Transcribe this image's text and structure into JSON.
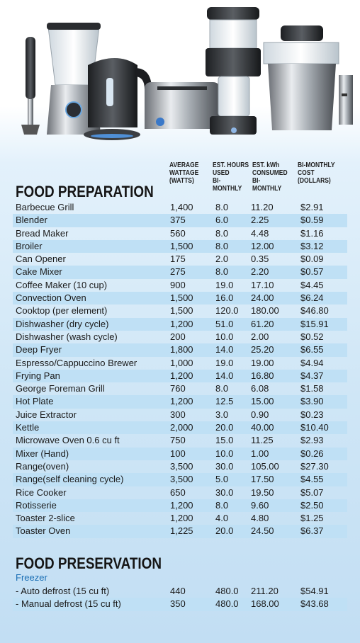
{
  "headers": {
    "wattage": [
      "AVERAGE",
      "WATTAGE",
      "(WATTS)"
    ],
    "hours": [
      "EST. HOURS",
      "USED",
      "BI-",
      "MONTHLY"
    ],
    "kwh": [
      "EST. kWh",
      "CONSUMED",
      "BI-",
      "MONTHLY"
    ],
    "cost": [
      "BI-MONTHLY",
      "COST",
      "(DOLLARS)"
    ]
  },
  "food_preparation": {
    "title": "FOOD PREPARATION",
    "rows": [
      {
        "name": "Barbecue Grill",
        "watts": "1,400",
        "hours": "8.0",
        "kwh": "11.20",
        "cost": "$2.91"
      },
      {
        "name": "Blender",
        "watts": "375",
        "hours": "6.0",
        "kwh": "2.25",
        "cost": "$0.59"
      },
      {
        "name": "Bread Maker",
        "watts": "560",
        "hours": "8.0",
        "kwh": "4.48",
        "cost": "$1.16"
      },
      {
        "name": "Broiler",
        "watts": "1,500",
        "hours": "8.0",
        "kwh": "12.00",
        "cost": "$3.12"
      },
      {
        "name": "Can Opener",
        "watts": "175",
        "hours": "2.0",
        "kwh": "0.35",
        "cost": "$0.09"
      },
      {
        "name": "Cake Mixer",
        "watts": "275",
        "hours": "8.0",
        "kwh": "2.20",
        "cost": "$0.57"
      },
      {
        "name": "Coffee Maker (10 cup)",
        "watts": "900",
        "hours": "19.0",
        "kwh": "17.10",
        "cost": "$4.45"
      },
      {
        "name": "Convection Oven",
        "watts": "1,500",
        "hours": "16.0",
        "kwh": "24.00",
        "cost": "$6.24"
      },
      {
        "name": "Cooktop (per element)",
        "watts": "1,500",
        "hours": "120.0",
        "kwh": "180.00",
        "cost": "$46.80"
      },
      {
        "name": "Dishwasher (dry cycle)",
        "watts": "1,200",
        "hours": "51.0",
        "kwh": "61.20",
        "cost": "$15.91"
      },
      {
        "name": "Dishwasher (wash cycle)",
        "watts": "200",
        "hours": "10.0",
        "kwh": "2.00",
        "cost": "$0.52"
      },
      {
        "name": "Deep Fryer",
        "watts": "1,800",
        "hours": "14.0",
        "kwh": "25.20",
        "cost": "$6.55"
      },
      {
        "name": "Espresso/Cappuccino Brewer",
        "watts": "1,000",
        "hours": "19.0",
        "kwh": "19.00",
        "cost": "$4.94"
      },
      {
        "name": "Frying Pan",
        "watts": "1,200",
        "hours": "14.0",
        "kwh": "16.80",
        "cost": "$4.37"
      },
      {
        "name": "George Foreman Grill",
        "watts": "760",
        "hours": "8.0",
        "kwh": "6.08",
        "cost": "$1.58"
      },
      {
        "name": "Hot Plate",
        "watts": "1,200",
        "hours": "12.5",
        "kwh": "15.00",
        "cost": "$3.90"
      },
      {
        "name": "Juice Extractor",
        "watts": "300",
        "hours": "3.0",
        "kwh": "0.90",
        "cost": "$0.23"
      },
      {
        "name": "Kettle",
        "watts": "2,000",
        "hours": "20.0",
        "kwh": "40.00",
        "cost": "$10.40"
      },
      {
        "name": "Microwave Oven 0.6 cu ft",
        "watts": "750",
        "hours": "15.0",
        "kwh": "11.25",
        "cost": "$2.93"
      },
      {
        "name": "Mixer (Hand)",
        "watts": "100",
        "hours": "10.0",
        "kwh": "1.00",
        "cost": "$0.26"
      },
      {
        "name": "Range(oven)",
        "watts": "3,500",
        "hours": "30.0",
        "kwh": "105.00",
        "cost": "$27.30"
      },
      {
        "name": "Range(self cleaning cycle)",
        "watts": "3,500",
        "hours": "5.0",
        "kwh": "17.50",
        "cost": "$4.55"
      },
      {
        "name": "Rice Cooker",
        "watts": "650",
        "hours": "30.0",
        "kwh": "19.50",
        "cost": "$5.07"
      },
      {
        "name": "Rotisserie",
        "watts": "1,200",
        "hours": "8.0",
        "kwh": "9.60",
        "cost": "$2.50"
      },
      {
        "name": "Toaster 2-slice",
        "watts": "1,200",
        "hours": "4.0",
        "kwh": "4.80",
        "cost": "$1.25"
      },
      {
        "name": "Toaster Oven",
        "watts": "1,225",
        "hours": "20.0",
        "kwh": "24.50",
        "cost": "$6.37"
      }
    ]
  },
  "food_preservation": {
    "title": "FOOD PRESERVATION",
    "subheading": "Freezer",
    "rows": [
      {
        "name": "- Auto defrost (15 cu ft)",
        "watts": "440",
        "hours": "480.0",
        "kwh": "211.20",
        "cost": "$54.91"
      },
      {
        "name": "- Manual defrost (15 cu ft)",
        "watts": "350",
        "hours": "480.0",
        "kwh": "168.00",
        "cost": "$43.68"
      }
    ]
  },
  "colors": {
    "alt_row": "#bfe0f5",
    "subheading": "#1b6fb5"
  }
}
